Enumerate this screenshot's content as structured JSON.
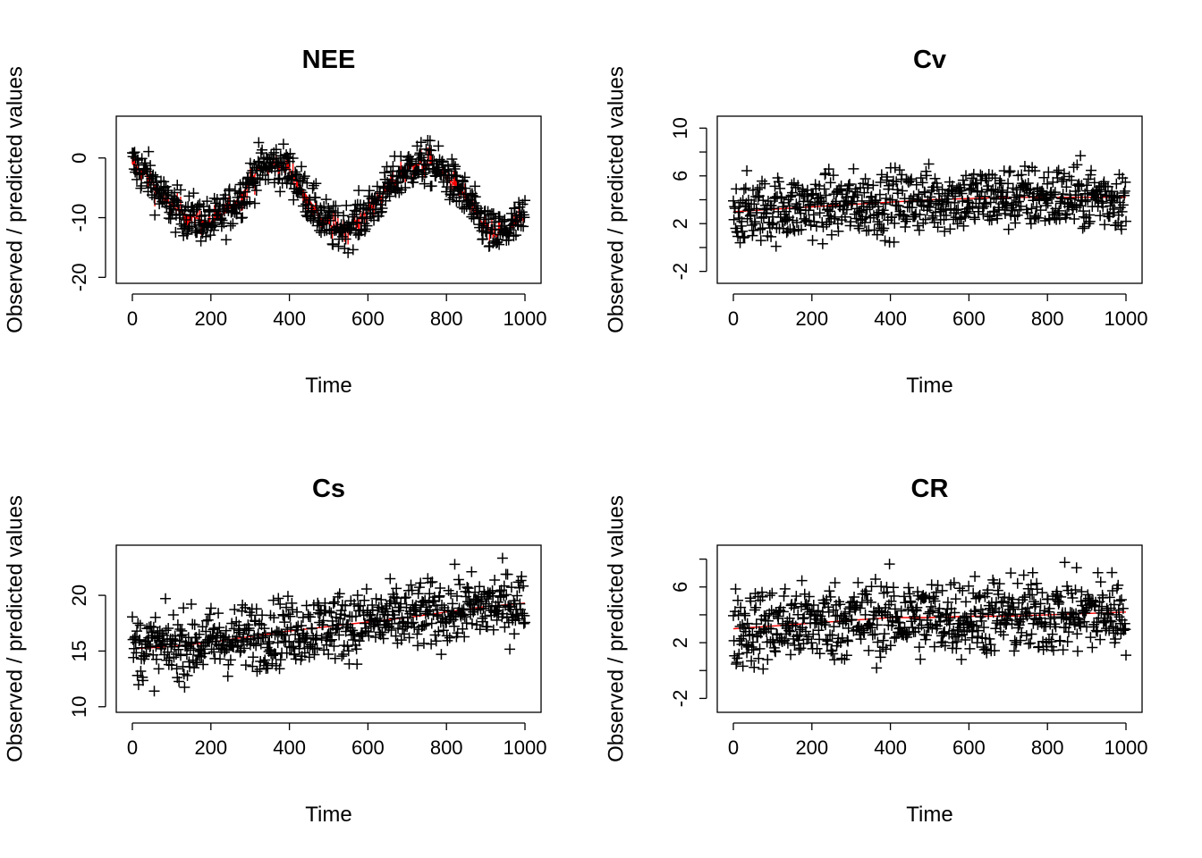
{
  "chart_data": [
    {
      "type": "scatter",
      "title": "NEE",
      "xlabel": "Time",
      "ylabel": "Observed / predicted values",
      "xlim": [
        0,
        1000
      ],
      "ylim": [
        -21,
        7
      ],
      "xticks": [
        0,
        200,
        400,
        600,
        800,
        1000
      ],
      "yticks": [
        -20,
        -10,
        0
      ],
      "ytick_labels": [
        "-20",
        "-10",
        "0"
      ],
      "observed_marker": "+",
      "colors": {
        "observed": "#000000",
        "predicted": "#ff0000"
      },
      "series": [
        {
          "name": "observed",
          "x": [
            0,
            40,
            80,
            120,
            160,
            200,
            240,
            280,
            320,
            360,
            400,
            440,
            480,
            520,
            560,
            600,
            640,
            680,
            720,
            760,
            800,
            840,
            880,
            920,
            960,
            1000
          ],
          "y": [
            -1,
            -3,
            -7,
            -9,
            -10,
            -11,
            -9,
            -6,
            -2,
            -1,
            -2,
            -6,
            -10,
            -12,
            -11,
            -9,
            -6,
            -3,
            -1,
            -1,
            -3,
            -6,
            -10,
            -13,
            -12,
            -10
          ]
        },
        {
          "name": "predicted",
          "x": [
            0,
            40,
            80,
            120,
            160,
            200,
            240,
            280,
            320,
            360,
            400,
            440,
            480,
            520,
            560,
            600,
            640,
            680,
            720,
            760,
            800,
            840,
            880,
            920,
            960,
            1000
          ],
          "y": [
            -1,
            -3,
            -7,
            -9,
            -10,
            -11,
            -9,
            -6,
            -2,
            -1,
            -2,
            -6,
            -10,
            -12,
            -11,
            -9,
            -6,
            -3,
            -1,
            -1,
            -3,
            -6,
            -10,
            -13,
            -12,
            -10
          ]
        }
      ]
    },
    {
      "type": "scatter",
      "title": "Cv",
      "xlabel": "Time",
      "ylabel": "Observed / predicted values",
      "xlim": [
        0,
        1000
      ],
      "ylim": [
        -3,
        11
      ],
      "xticks": [
        0,
        200,
        400,
        600,
        800,
        1000
      ],
      "yticks": [
        -2,
        0,
        2,
        4,
        6,
        8,
        10
      ],
      "ytick_labels": [
        "-2",
        "",
        "2",
        "",
        "6",
        "",
        "10"
      ],
      "observed_marker": "+",
      "colors": {
        "observed": "#000000",
        "predicted": "#ff0000"
      },
      "series": [
        {
          "name": "observed",
          "x": [
            0,
            100,
            200,
            300,
            400,
            500,
            600,
            700,
            800,
            900,
            1000
          ],
          "y": [
            3.0,
            3.2,
            3.4,
            3.6,
            3.8,
            4.0,
            4.1,
            4.2,
            4.2,
            4.2,
            4.2
          ]
        },
        {
          "name": "predicted",
          "x": [
            0,
            100,
            200,
            300,
            400,
            500,
            600,
            700,
            800,
            900,
            1000
          ],
          "y": [
            3.0,
            3.2,
            3.4,
            3.6,
            3.8,
            4.0,
            4.1,
            4.2,
            4.2,
            4.2,
            4.2
          ]
        }
      ]
    },
    {
      "type": "scatter",
      "title": "Cs",
      "xlabel": "Time",
      "ylabel": "Observed / predicted values",
      "xlim": [
        0,
        1000
      ],
      "ylim": [
        9.5,
        24.5
      ],
      "xticks": [
        0,
        200,
        400,
        600,
        800,
        1000
      ],
      "yticks": [
        10,
        15,
        20
      ],
      "ytick_labels": [
        "10",
        "15",
        "20"
      ],
      "observed_marker": "+",
      "colors": {
        "observed": "#000000",
        "predicted": "#ff0000"
      },
      "series": [
        {
          "name": "observed",
          "x": [
            0,
            100,
            200,
            300,
            400,
            500,
            600,
            700,
            800,
            900,
            1000
          ],
          "y": [
            15.2,
            15.4,
            15.8,
            16.3,
            16.8,
            17.2,
            17.6,
            18.0,
            18.5,
            19.0,
            19.3
          ]
        },
        {
          "name": "predicted",
          "x": [
            0,
            100,
            200,
            300,
            400,
            500,
            600,
            700,
            800,
            900,
            1000
          ],
          "y": [
            15.2,
            15.4,
            15.8,
            16.3,
            16.8,
            17.2,
            17.6,
            18.0,
            18.5,
            19.0,
            19.3
          ]
        }
      ]
    },
    {
      "type": "scatter",
      "title": "CR",
      "xlabel": "Time",
      "ylabel": "Observed / predicted values",
      "xlim": [
        0,
        1000
      ],
      "ylim": [
        -3,
        9
      ],
      "xticks": [
        0,
        200,
        400,
        600,
        800,
        1000
      ],
      "yticks": [
        -2,
        0,
        2,
        4,
        6,
        8
      ],
      "ytick_labels": [
        "-2",
        "",
        "2",
        "",
        "6",
        ""
      ],
      "observed_marker": "+",
      "colors": {
        "observed": "#000000",
        "predicted": "#ff0000"
      },
      "series": [
        {
          "name": "observed",
          "x": [
            0,
            100,
            200,
            300,
            400,
            500,
            600,
            700,
            800,
            900,
            1000
          ],
          "y": [
            3.0,
            3.2,
            3.4,
            3.6,
            3.8,
            3.8,
            3.9,
            3.9,
            4.0,
            4.1,
            4.2
          ]
        },
        {
          "name": "predicted",
          "x": [
            0,
            100,
            200,
            300,
            400,
            500,
            600,
            700,
            800,
            900,
            1000
          ],
          "y": [
            3.0,
            3.2,
            3.4,
            3.6,
            3.8,
            3.8,
            3.9,
            3.9,
            4.0,
            4.1,
            4.2
          ]
        }
      ]
    }
  ]
}
